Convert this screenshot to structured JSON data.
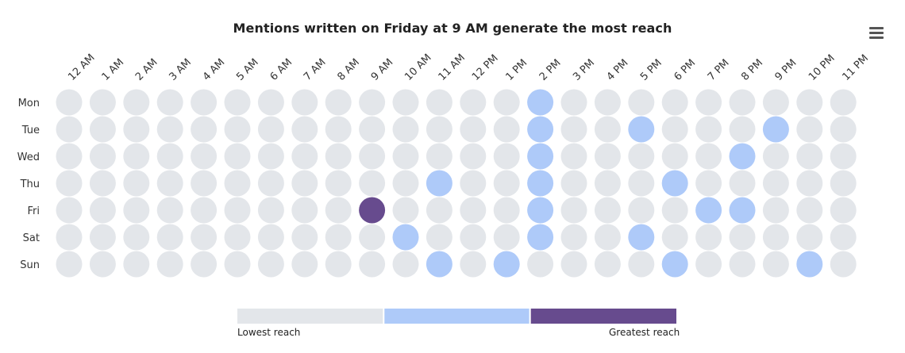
{
  "chart_data": {
    "type": "heatmap",
    "title": "Mentions written on Friday at 9 AM generate the most reach",
    "x_categories": [
      "12 AM",
      "1 AM",
      "2 AM",
      "3 AM",
      "4 AM",
      "5 AM",
      "6 AM",
      "7 AM",
      "8 AM",
      "9 AM",
      "10 AM",
      "11 AM",
      "12 PM",
      "1 PM",
      "2 PM",
      "3 PM",
      "4 PM",
      "5 PM",
      "6 PM",
      "7 PM",
      "8 PM",
      "9 PM",
      "10 PM",
      "11 PM"
    ],
    "y_categories": [
      "Mon",
      "Tue",
      "Wed",
      "Thu",
      "Fri",
      "Sat",
      "Sun"
    ],
    "values": [
      [
        1,
        1,
        1,
        1,
        1,
        1,
        1,
        1,
        1,
        1,
        1,
        1,
        1,
        1,
        2,
        1,
        1,
        1,
        1,
        1,
        1,
        1,
        1,
        1
      ],
      [
        1,
        1,
        1,
        1,
        1,
        1,
        1,
        1,
        1,
        1,
        1,
        1,
        1,
        1,
        2,
        1,
        1,
        2,
        1,
        1,
        1,
        2,
        1,
        1
      ],
      [
        1,
        1,
        1,
        1,
        1,
        1,
        1,
        1,
        1,
        1,
        1,
        1,
        1,
        1,
        2,
        1,
        1,
        1,
        1,
        1,
        2,
        1,
        1,
        1
      ],
      [
        1,
        1,
        1,
        1,
        1,
        1,
        1,
        1,
        1,
        1,
        1,
        2,
        1,
        1,
        2,
        1,
        1,
        1,
        2,
        1,
        1,
        1,
        1,
        1
      ],
      [
        1,
        1,
        1,
        1,
        1,
        1,
        1,
        1,
        1,
        3,
        1,
        1,
        1,
        1,
        2,
        1,
        1,
        1,
        1,
        2,
        2,
        1,
        1,
        1
      ],
      [
        1,
        1,
        1,
        1,
        1,
        1,
        1,
        1,
        1,
        1,
        2,
        1,
        1,
        1,
        2,
        1,
        1,
        2,
        1,
        1,
        1,
        1,
        1,
        1
      ],
      [
        1,
        1,
        1,
        1,
        1,
        1,
        1,
        1,
        1,
        1,
        1,
        2,
        1,
        2,
        1,
        1,
        1,
        1,
        2,
        1,
        1,
        1,
        2,
        1
      ]
    ],
    "color_scale": [
      "#e3e6ea",
      "#aecaf9",
      "#674b8e"
    ],
    "legend": {
      "placement": "bottom-center",
      "min_label": "Lowest reach",
      "max_label": "Greatest reach"
    },
    "grid": false
  },
  "toolbar": {
    "menu_icon": "hamburger-menu-icon"
  }
}
